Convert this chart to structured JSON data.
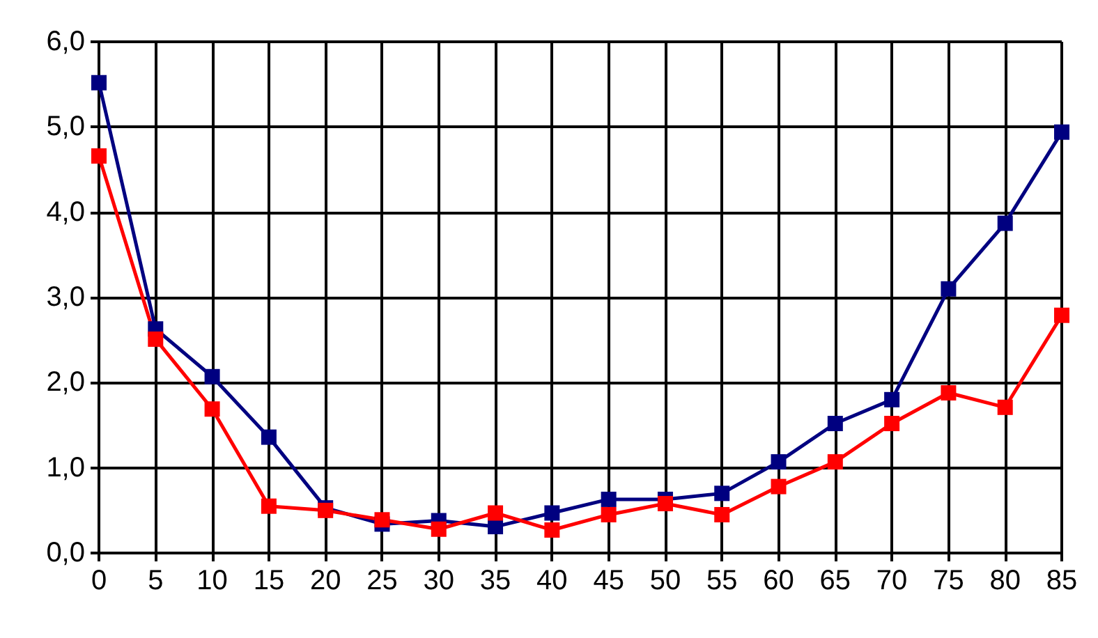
{
  "chart_data": {
    "type": "line",
    "x": [
      0,
      5,
      10,
      15,
      20,
      25,
      30,
      35,
      40,
      45,
      50,
      55,
      60,
      65,
      70,
      75,
      80,
      85
    ],
    "series": [
      {
        "color": "#000080",
        "values": [
          5.52,
          2.63,
          2.07,
          1.36,
          0.53,
          0.34,
          0.38,
          0.31,
          0.47,
          0.63,
          0.63,
          0.7,
          1.07,
          1.52,
          1.8,
          3.1,
          3.87,
          4.94
        ]
      },
      {
        "color": "#ff0000",
        "values": [
          4.66,
          2.51,
          1.69,
          0.55,
          0.5,
          0.39,
          0.28,
          0.47,
          0.27,
          0.45,
          0.58,
          0.45,
          0.78,
          1.07,
          1.52,
          1.88,
          1.71,
          2.79
        ]
      }
    ],
    "xlim": [
      0,
      85
    ],
    "xticks": [
      0,
      5,
      10,
      15,
      20,
      25,
      30,
      35,
      40,
      45,
      50,
      55,
      60,
      65,
      70,
      75,
      80,
      85
    ],
    "ylim": [
      0,
      6
    ],
    "yticks": [
      {
        "value": 0,
        "label": "0,0"
      },
      {
        "value": 1,
        "label": "1,0"
      },
      {
        "value": 2,
        "label": "2,0"
      },
      {
        "value": 3,
        "label": "3,0"
      },
      {
        "value": 4,
        "label": "4,0"
      },
      {
        "value": 5,
        "label": "5,0"
      },
      {
        "value": 6,
        "label": "6,0"
      }
    ],
    "grid": true,
    "marker": "square",
    "line_style": "solid"
  }
}
